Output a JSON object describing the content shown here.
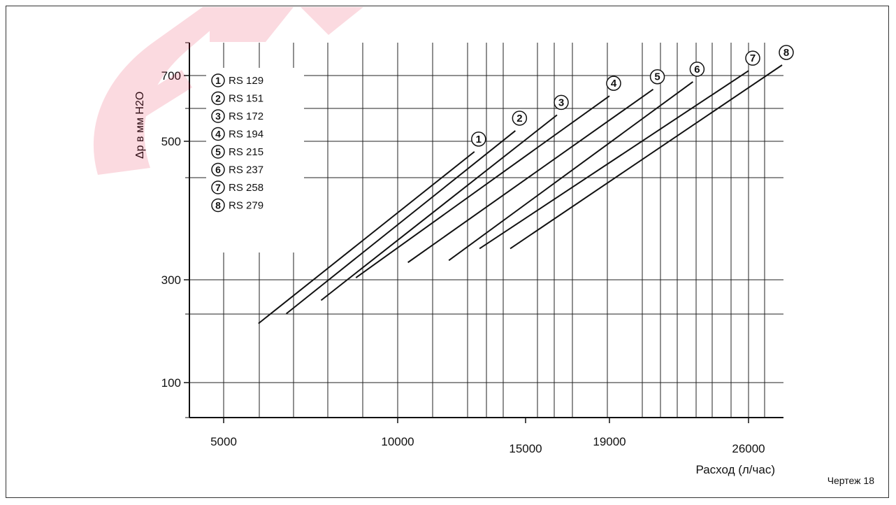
{
  "drawing_ref": "Чертеж 18",
  "colors": {
    "line": "#111111",
    "grid": "#222222",
    "watermark": "#e8002d"
  },
  "chart_data": {
    "type": "line",
    "title": "",
    "xlabel": "Расход (л/час)",
    "ylabel": "Δp в мм H2O",
    "x_ticks": [
      {
        "value": 5000,
        "label": "5000",
        "level": 0
      },
      {
        "value": 10000,
        "label": "10000",
        "level": 0
      },
      {
        "value": 15000,
        "label": "15000",
        "level": 1
      },
      {
        "value": 19000,
        "label": "19000",
        "level": 0
      },
      {
        "value": 26000,
        "label": "26000",
        "level": 1
      }
    ],
    "y_ticks": [
      {
        "value": 100,
        "label": "100"
      },
      {
        "value": 300,
        "label": "300"
      },
      {
        "value": 500,
        "label": "500"
      },
      {
        "value": 700,
        "label": "700"
      }
    ],
    "grid": true,
    "legend_position": "top-left",
    "series": [
      {
        "marker": "1",
        "name": "RS 129",
        "x": [
          6000,
          13000
        ],
        "y": [
          215,
          485
        ]
      },
      {
        "marker": "2",
        "name": "RS 151",
        "x": [
          6800,
          14600
        ],
        "y": [
          234,
          532
        ]
      },
      {
        "marker": "3",
        "name": "RS 172",
        "x": [
          7800,
          16500
        ],
        "y": [
          260,
          580
        ]
      },
      {
        "marker": "4",
        "name": "RS 194",
        "x": [
          8800,
          19000
        ],
        "y": [
          303,
          638
        ]
      },
      {
        "marker": "5",
        "name": "RS 215",
        "x": [
          10400,
          21200
        ],
        "y": [
          325,
          658
        ]
      },
      {
        "marker": "6",
        "name": "RS 237",
        "x": [
          12000,
          23200
        ],
        "y": [
          328,
          681
        ]
      },
      {
        "marker": "7",
        "name": "RS 258",
        "x": [
          13200,
          26000
        ],
        "y": [
          345,
          710
        ]
      },
      {
        "marker": "8",
        "name": "RS 279",
        "x": [
          14400,
          27600
        ],
        "y": [
          345,
          722
        ]
      }
    ]
  }
}
